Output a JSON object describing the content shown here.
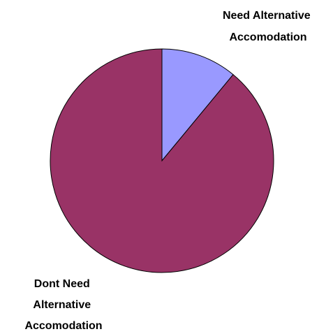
{
  "chart_data": {
    "type": "pie",
    "title": "",
    "categories": [
      "Need Alternative Accomodation",
      "Dont Need Alternative Accomodation"
    ],
    "values": [
      11,
      89
    ],
    "colors": [
      "#9999ff",
      "#993366"
    ],
    "slice_outline_color": "#000000",
    "labels": [
      {
        "lines": [
          "Need Alternative",
          "Accomodation"
        ]
      },
      {
        "lines": [
          "Dont Need",
          "Alternative",
          "Accomodation"
        ]
      }
    ],
    "start_angle_deg": 0,
    "direction": "clockwise",
    "legend": "none"
  }
}
